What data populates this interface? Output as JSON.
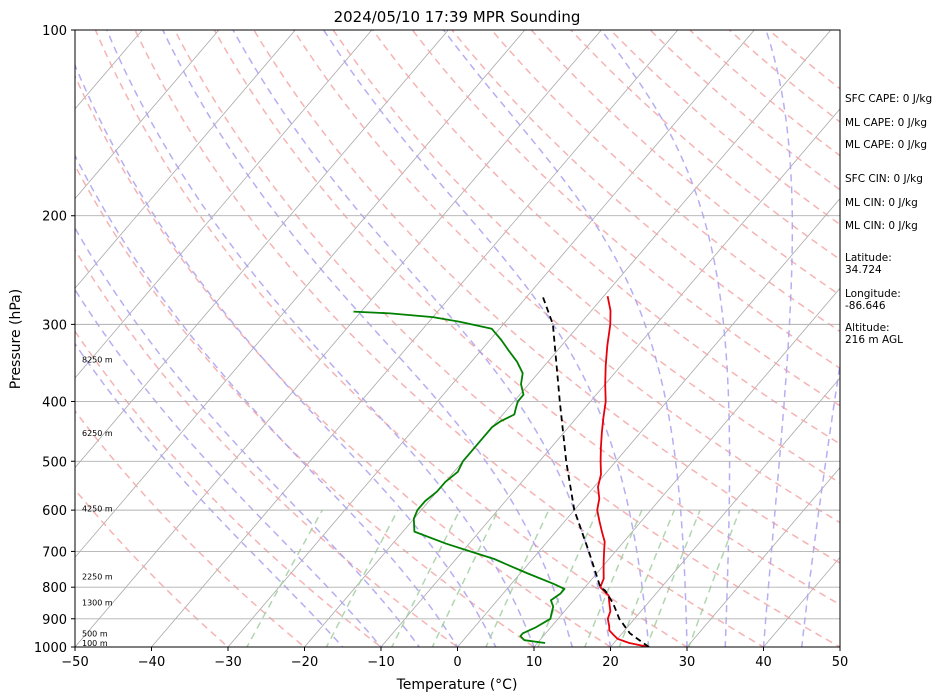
{
  "chart_data": {
    "type": "line",
    "title": "2024/05/10 17:39 MPR Sounding",
    "xlabel": "Temperature (°C)",
    "ylabel": "Pressure (hPa)",
    "xlim": [
      -50,
      50
    ],
    "ylim": [
      1000,
      100
    ],
    "y_scale": "log",
    "skew": "skew-T log-p diagram",
    "grid": true,
    "x_ticks": [
      "−50",
      "−40",
      "−30",
      "−20",
      "−10",
      "0",
      "10",
      "20",
      "30",
      "40",
      "50"
    ],
    "y_ticks": [
      "100",
      "200",
      "300",
      "400",
      "500",
      "600",
      "700",
      "800",
      "900",
      "1000"
    ],
    "series": [
      {
        "name": "",
        "role": "temperature",
        "color": "#e8000b",
        "style": "solid",
        "points": [
          [
            1000,
            25
          ],
          [
            985,
            22
          ],
          [
            970,
            20
          ],
          [
            955,
            19
          ],
          [
            940,
            18
          ],
          [
            925,
            17.5
          ],
          [
            900,
            16.5
          ],
          [
            875,
            16
          ],
          [
            850,
            15
          ],
          [
            825,
            14
          ],
          [
            800,
            12
          ],
          [
            775,
            11.5
          ],
          [
            750,
            10.5
          ],
          [
            725,
            9.5
          ],
          [
            700,
            8.5
          ],
          [
            675,
            7.5
          ],
          [
            650,
            6
          ],
          [
            625,
            4.5
          ],
          [
            600,
            3
          ],
          [
            575,
            2
          ],
          [
            550,
            0.5
          ],
          [
            525,
            -0.5
          ],
          [
            500,
            -2
          ],
          [
            475,
            -3.5
          ],
          [
            450,
            -5
          ],
          [
            425,
            -6.5
          ],
          [
            400,
            -8
          ],
          [
            375,
            -10
          ],
          [
            350,
            -12
          ],
          [
            325,
            -14
          ],
          [
            300,
            -16
          ],
          [
            285,
            -17.5
          ],
          [
            270,
            -19.5
          ]
        ]
      },
      {
        "name": "",
        "role": "dewpoint",
        "color": "#008000",
        "style": "solid",
        "points": [
          [
            985,
            11
          ],
          [
            975,
            8
          ],
          [
            960,
            7
          ],
          [
            950,
            7
          ],
          [
            930,
            8
          ],
          [
            900,
            9
          ],
          [
            880,
            8.5
          ],
          [
            860,
            8
          ],
          [
            840,
            7
          ],
          [
            820,
            7.5
          ],
          [
            805,
            7.5
          ],
          [
            790,
            5.5
          ],
          [
            760,
            1
          ],
          [
            740,
            -2
          ],
          [
            720,
            -5
          ],
          [
            700,
            -9
          ],
          [
            680,
            -13
          ],
          [
            650,
            -18.5
          ],
          [
            620,
            -20
          ],
          [
            600,
            -20.5
          ],
          [
            580,
            -20.5
          ],
          [
            560,
            -20
          ],
          [
            540,
            -20
          ],
          [
            520,
            -19.5
          ],
          [
            500,
            -20
          ],
          [
            480,
            -20
          ],
          [
            460,
            -20
          ],
          [
            440,
            -20
          ],
          [
            430,
            -19.5
          ],
          [
            420,
            -18.5
          ],
          [
            410,
            -19
          ],
          [
            400,
            -19.5
          ],
          [
            390,
            -19.5
          ],
          [
            375,
            -21
          ],
          [
            360,
            -22
          ],
          [
            345,
            -24
          ],
          [
            330,
            -26.5
          ],
          [
            318,
            -28.5
          ],
          [
            305,
            -31
          ],
          [
            297,
            -36
          ],
          [
            292,
            -40
          ],
          [
            288,
            -46
          ],
          [
            286,
            -51
          ]
        ]
      },
      {
        "name": "",
        "role": "parcel",
        "color": "#000000",
        "style": "dashed",
        "points": [
          [
            1000,
            25
          ],
          [
            950,
            21
          ],
          [
            900,
            18
          ],
          [
            850,
            15.5
          ],
          [
            810,
            13
          ],
          [
            800,
            12
          ],
          [
            700,
            6.5
          ],
          [
            600,
            0
          ],
          [
            500,
            -6.5
          ],
          [
            400,
            -14
          ],
          [
            300,
            -23.5
          ],
          [
            270,
            -28
          ]
        ]
      }
    ],
    "height_labels": [
      {
        "p": 1000,
        "text": "100 m"
      },
      {
        "p": 965,
        "text": "500 m"
      },
      {
        "p": 860,
        "text": "1300 m"
      },
      {
        "p": 780,
        "text": "2250 m"
      },
      {
        "p": 605,
        "text": "4250 m"
      },
      {
        "p": 457,
        "text": "6250 m"
      },
      {
        "p": 347,
        "text": "8250 m"
      }
    ],
    "isotherm_color": "#a9a9a9",
    "dry_adiabat_color": "#f4a6a6",
    "moist_adiabat_color": "#a9a0f0",
    "mixing_ratio_color": "#9ccc9c"
  },
  "sidebar": {
    "items": [
      "SFC CAPE: 0 J/kg",
      "ML CAPE: 0 J/kg",
      "ML CAPE: 0 J/kg",
      "SFC CIN: 0 J/kg",
      "ML CIN: 0 J/kg",
      "ML CIN: 0 J/kg",
      "Latitude:",
      "34.724",
      "Longitude:",
      "-86.646",
      "Altitude:",
      "216 m AGL"
    ]
  }
}
